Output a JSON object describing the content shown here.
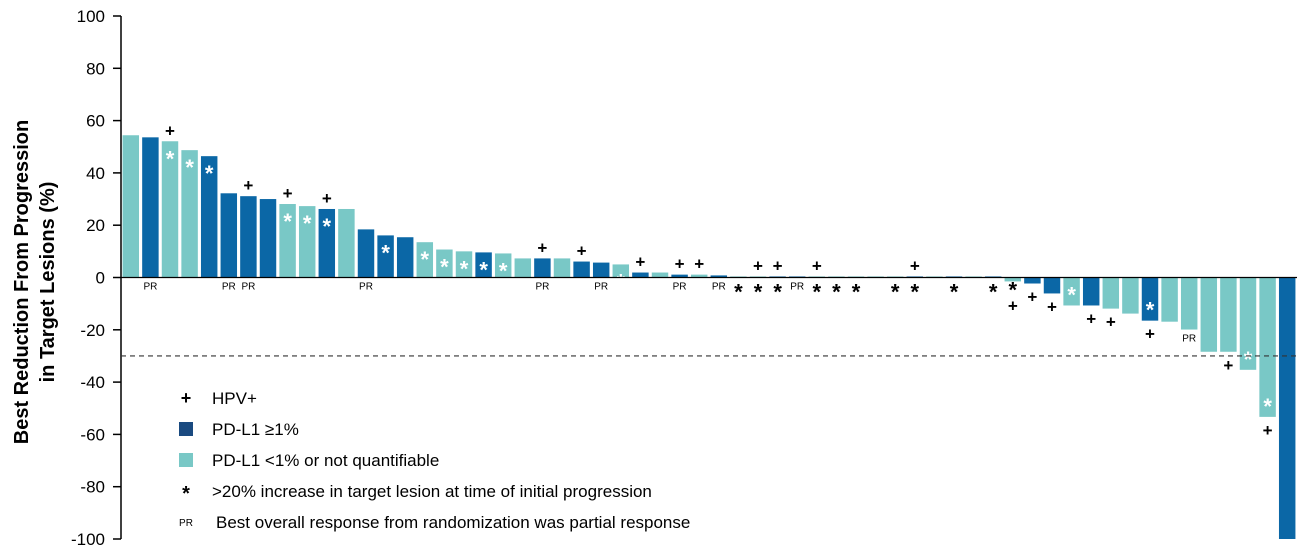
{
  "chart_data": {
    "type": "bar",
    "ylabel": "Best Reduction From Progression in Target Lesions (%)",
    "ylabel_lines": [
      "Best Reduction From Progression",
      "in Target Lesions (%)"
    ],
    "ylim": [
      -100,
      100
    ],
    "yticks": [
      100,
      80,
      60,
      40,
      20,
      0,
      -20,
      -40,
      -60,
      -80,
      -100
    ],
    "reference_line": -30,
    "grid": false,
    "colors": {
      "PD-L1 ≥1%": "#0b67a6",
      "PD-L1 <1% or not quantifiable": "#79c8c6",
      "PD-L1 ≥1% legend": "#1a4a80"
    },
    "bars": [
      {
        "value": 54.4,
        "group": "low",
        "hpv": false,
        "star": false,
        "pr": false
      },
      {
        "value": 53.6,
        "group": "high",
        "hpv": false,
        "star": false,
        "pr": true
      },
      {
        "value": 52.1,
        "group": "low",
        "hpv": true,
        "star": true,
        "pr": false
      },
      {
        "value": 48.7,
        "group": "low",
        "hpv": false,
        "star": true,
        "pr": false
      },
      {
        "value": 46.4,
        "group": "high",
        "hpv": false,
        "star": true,
        "pr": false
      },
      {
        "value": 32.2,
        "group": "high",
        "hpv": false,
        "star": false,
        "pr": true
      },
      {
        "value": 31.1,
        "group": "high",
        "hpv": true,
        "star": false,
        "pr": true
      },
      {
        "value": 30.0,
        "group": "high",
        "hpv": false,
        "star": false,
        "pr": false
      },
      {
        "value": 28.1,
        "group": "low",
        "hpv": true,
        "star": true,
        "pr": false
      },
      {
        "value": 27.3,
        "group": "low",
        "hpv": false,
        "star": true,
        "pr": false
      },
      {
        "value": 26.2,
        "group": "high",
        "hpv": true,
        "star": true,
        "pr": false
      },
      {
        "value": 26.2,
        "group": "low",
        "hpv": false,
        "star": false,
        "pr": false
      },
      {
        "value": 18.4,
        "group": "high",
        "hpv": false,
        "star": false,
        "pr": true
      },
      {
        "value": 16.1,
        "group": "high",
        "hpv": false,
        "star": true,
        "pr": false
      },
      {
        "value": 15.4,
        "group": "high",
        "hpv": false,
        "star": false,
        "pr": false
      },
      {
        "value": 13.5,
        "group": "low",
        "hpv": false,
        "star": true,
        "pr": false
      },
      {
        "value": 10.7,
        "group": "low",
        "hpv": false,
        "star": true,
        "pr": false
      },
      {
        "value": 10.0,
        "group": "low",
        "hpv": false,
        "star": true,
        "pr": false
      },
      {
        "value": 9.6,
        "group": "high",
        "hpv": false,
        "star": true,
        "pr": false
      },
      {
        "value": 9.2,
        "group": "low",
        "hpv": false,
        "star": true,
        "pr": false
      },
      {
        "value": 7.3,
        "group": "low",
        "hpv": false,
        "star": false,
        "pr": false
      },
      {
        "value": 7.3,
        "group": "high",
        "hpv": true,
        "star": false,
        "pr": true
      },
      {
        "value": 7.3,
        "group": "low",
        "hpv": false,
        "star": false,
        "pr": false
      },
      {
        "value": 6.1,
        "group": "high",
        "hpv": true,
        "star": false,
        "pr": false
      },
      {
        "value": 5.7,
        "group": "high",
        "hpv": false,
        "star": false,
        "pr": true
      },
      {
        "value": 5.0,
        "group": "low",
        "hpv": false,
        "star": true,
        "pr": false
      },
      {
        "value": 1.9,
        "group": "high",
        "hpv": true,
        "star": false,
        "pr": false
      },
      {
        "value": 1.9,
        "group": "low",
        "hpv": false,
        "star": false,
        "pr": false
      },
      {
        "value": 1.1,
        "group": "high",
        "hpv": true,
        "star": false,
        "pr": true
      },
      {
        "value": 1.1,
        "group": "low",
        "hpv": true,
        "star": false,
        "pr": false
      },
      {
        "value": 0.8,
        "group": "high",
        "hpv": false,
        "star": false,
        "pr": true
      },
      {
        "value": 0.4,
        "group": "low",
        "hpv": false,
        "star": false,
        "pr": false,
        "star_below": true
      },
      {
        "value": 0.4,
        "group": "low",
        "hpv": true,
        "star": false,
        "pr": false,
        "star_below": true
      },
      {
        "value": 0.4,
        "group": "high",
        "hpv": true,
        "star": false,
        "pr": false,
        "star_below": true
      },
      {
        "value": 0.4,
        "group": "high",
        "hpv": false,
        "star": false,
        "pr": true
      },
      {
        "value": 0.4,
        "group": "low",
        "hpv": true,
        "star": false,
        "pr": false,
        "star_below": true
      },
      {
        "value": 0.4,
        "group": "low",
        "hpv": false,
        "star": false,
        "pr": false,
        "star_below": true
      },
      {
        "value": 0.4,
        "group": "low",
        "hpv": false,
        "star": false,
        "pr": false,
        "star_below": true
      },
      {
        "value": 0.4,
        "group": "low",
        "hpv": false,
        "star": false,
        "pr": false
      },
      {
        "value": 0.4,
        "group": "low",
        "hpv": false,
        "star": false,
        "pr": false,
        "star_below": true
      },
      {
        "value": 0.4,
        "group": "high",
        "hpv": true,
        "star": false,
        "pr": false,
        "star_below": true
      },
      {
        "value": 0.4,
        "group": "low",
        "hpv": false,
        "star": false,
        "pr": false
      },
      {
        "value": 0.4,
        "group": "high",
        "hpv": false,
        "star": false,
        "pr": false,
        "star_below": true
      },
      {
        "value": 0.4,
        "group": "low",
        "hpv": false,
        "star": false,
        "pr": false
      },
      {
        "value": 0.4,
        "group": "high",
        "hpv": false,
        "star": false,
        "pr": false,
        "star_below": true
      },
      {
        "value": -1.5,
        "group": "low",
        "hpv": true,
        "star": false,
        "pr": false,
        "star_below": true
      },
      {
        "value": -2.3,
        "group": "high",
        "hpv": true,
        "star": false,
        "pr": false
      },
      {
        "value": -6.1,
        "group": "high",
        "hpv": true,
        "star": false,
        "pr": false
      },
      {
        "value": -10.7,
        "group": "low",
        "hpv": false,
        "star": true,
        "pr": false
      },
      {
        "value": -10.7,
        "group": "high",
        "hpv": true,
        "star": false,
        "pr": false
      },
      {
        "value": -11.9,
        "group": "low",
        "hpv": true,
        "star": false,
        "pr": false
      },
      {
        "value": -13.8,
        "group": "low",
        "hpv": false,
        "star": false,
        "pr": false
      },
      {
        "value": -16.5,
        "group": "high",
        "hpv": true,
        "star": true,
        "pr": false
      },
      {
        "value": -16.9,
        "group": "low",
        "hpv": false,
        "star": false,
        "pr": false
      },
      {
        "value": -19.9,
        "group": "low",
        "hpv": false,
        "star": false,
        "pr": true
      },
      {
        "value": -28.4,
        "group": "low",
        "hpv": false,
        "star": false,
        "pr": false
      },
      {
        "value": -28.4,
        "group": "low",
        "hpv": true,
        "star": false,
        "pr": false
      },
      {
        "value": -35.3,
        "group": "low",
        "hpv": false,
        "star": true,
        "pr": false
      },
      {
        "value": -53.3,
        "group": "low",
        "hpv": true,
        "star": true,
        "pr": false
      },
      {
        "value": -100,
        "group": "high",
        "hpv": false,
        "star": false,
        "pr": false
      }
    ],
    "symbols": {
      "hpv": "+",
      "star": "*",
      "pr": "PR"
    },
    "legend": {
      "placement": "bottom-left",
      "items": [
        {
          "symbol": "+",
          "label": "HPV+"
        },
        {
          "swatch": "high",
          "label": "PD-L1 ≥1%"
        },
        {
          "swatch": "low",
          "label": "PD-L1 <1% or not quantifiable"
        },
        {
          "symbol": "*",
          "label": ">20% increase in target lesion at time of initial progression"
        },
        {
          "symbol": "PR",
          "label": "Best overall response from randomization was partial response"
        }
      ]
    }
  }
}
